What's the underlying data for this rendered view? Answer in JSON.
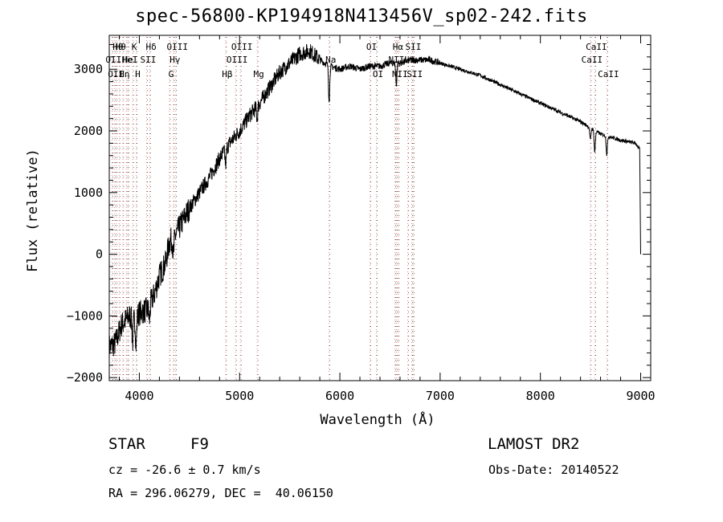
{
  "chart_data": {
    "type": "line",
    "title": "spec-56800-KP194918N413456V_sp02-242.fits",
    "xlabel": "Wavelength (Å)",
    "ylabel": "Flux (relative)",
    "xlim": [
      3700,
      9100
    ],
    "ylim": [
      -2050,
      3550
    ],
    "xticks": [
      4000,
      5000,
      6000,
      7000,
      8000,
      9000
    ],
    "yticks": [
      -2000,
      -1000,
      0,
      1000,
      2000,
      3000
    ],
    "grid": false,
    "spectrum_anchors": [
      [
        3700,
        -1500
      ],
      [
        3760,
        -1450
      ],
      [
        3820,
        -1150
      ],
      [
        3900,
        -1000
      ],
      [
        3950,
        -1050
      ],
      [
        4000,
        -950
      ],
      [
        4080,
        -900
      ],
      [
        4150,
        -650
      ],
      [
        4200,
        -350
      ],
      [
        4260,
        -150
      ],
      [
        4300,
        200
      ],
      [
        4360,
        300
      ],
      [
        4420,
        500
      ],
      [
        4500,
        750
      ],
      [
        4600,
        1000
      ],
      [
        4700,
        1250
      ],
      [
        4800,
        1550
      ],
      [
        4900,
        1800
      ],
      [
        5000,
        2000
      ],
      [
        5100,
        2250
      ],
      [
        5200,
        2450
      ],
      [
        5300,
        2700
      ],
      [
        5400,
        2950
      ],
      [
        5500,
        3100
      ],
      [
        5600,
        3250
      ],
      [
        5700,
        3300
      ],
      [
        5800,
        3150
      ],
      [
        5900,
        3050
      ],
      [
        6000,
        3000
      ],
      [
        6100,
        3050
      ],
      [
        6200,
        3000
      ],
      [
        6300,
        3050
      ],
      [
        6400,
        3050
      ],
      [
        6500,
        3100
      ],
      [
        6600,
        3100
      ],
      [
        6700,
        3150
      ],
      [
        6800,
        3150
      ],
      [
        6900,
        3150
      ],
      [
        7000,
        3100
      ],
      [
        7200,
        3000
      ],
      [
        7400,
        2900
      ],
      [
        7600,
        2750
      ],
      [
        7800,
        2600
      ],
      [
        8000,
        2450
      ],
      [
        8200,
        2300
      ],
      [
        8400,
        2150
      ],
      [
        8500,
        2050
      ],
      [
        8600,
        1950
      ],
      [
        8800,
        1850
      ],
      [
        8950,
        1800
      ],
      [
        8990,
        1700
      ],
      [
        9000,
        0
      ]
    ],
    "absorption_features": [
      [
        3933,
        -400
      ],
      [
        3968,
        -450
      ],
      [
        4101,
        -250
      ],
      [
        4340,
        -300
      ],
      [
        4861,
        -250
      ],
      [
        5175,
        -200
      ],
      [
        5893,
        -550
      ],
      [
        6563,
        -350
      ],
      [
        8498,
        -200
      ],
      [
        8542,
        -350
      ],
      [
        8662,
        -300
      ]
    ],
    "line_markers": [
      {
        "wl": 3727,
        "label": "OII",
        "row": 2
      },
      {
        "wl": 3750,
        "label": "OII",
        "row": 3
      },
      {
        "wl": 3771,
        "label": "Hθ",
        "row": 1
      },
      {
        "wl": 3798,
        "label": "Hθ",
        "row": 1
      },
      {
        "wl": 3835,
        "label": "Hη",
        "row": 3
      },
      {
        "wl": 3869,
        "label": "He",
        "row": 2
      },
      {
        "wl": 3889,
        "label": "HeI",
        "row": 2
      },
      {
        "wl": 3933,
        "label": "K",
        "row": 1
      },
      {
        "wl": 3968,
        "label": "H",
        "row": 3
      },
      {
        "wl": 4072,
        "label": "SII",
        "row": 2
      },
      {
        "wl": 4102,
        "label": "Hδ",
        "row": 1
      },
      {
        "wl": 4300,
        "label": "G",
        "row": 3
      },
      {
        "wl": 4340,
        "label": "Hγ",
        "row": 2
      },
      {
        "wl": 4363,
        "label": "OIII",
        "row": 1
      },
      {
        "wl": 4861,
        "label": "Hβ",
        "row": 3
      },
      {
        "wl": 4959,
        "label": "OIII",
        "row": 2
      },
      {
        "wl": 5007,
        "label": "OIII",
        "row": 1
      },
      {
        "wl": 5175,
        "label": "Mg",
        "row": 3
      },
      {
        "wl": 5893,
        "label": "Na",
        "row": 2
      },
      {
        "wl": 6300,
        "label": "OI",
        "row": 1
      },
      {
        "wl": 6364,
        "label": "OI",
        "row": 3
      },
      {
        "wl": 6548,
        "label": "NII",
        "row": 2
      },
      {
        "wl": 6563,
        "label": "Hα",
        "row": 1
      },
      {
        "wl": 6583,
        "label": "NII",
        "row": 3
      },
      {
        "wl": 6678,
        "label": "Li",
        "row": 2
      },
      {
        "wl": 6716,
        "label": "SII",
        "row": 1
      },
      {
        "wl": 6731,
        "label": "SII",
        "row": 3
      },
      {
        "wl": 8498,
        "label": "CaII",
        "row": 2
      },
      {
        "wl": 8542,
        "label": "CaII",
        "row": 1
      },
      {
        "wl": 8662,
        "label": "CaII",
        "row": 3
      }
    ],
    "colors": {
      "line": "#000000",
      "marker_lines": "#e07070",
      "marker_dots": "#000000"
    }
  },
  "info": {
    "object_type": "STAR",
    "subclass": "F9",
    "survey": "LAMOST DR2",
    "redshift": "cz = -26.6 ± 0.7 km/s",
    "obs_date": "Obs-Date: 20140522",
    "coordinates": "RA = 296.06279, DEC =  40.06150"
  }
}
